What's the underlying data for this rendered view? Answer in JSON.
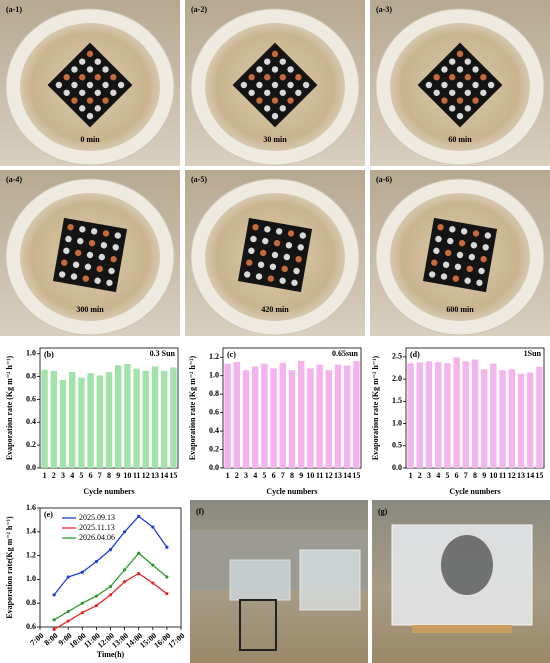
{
  "photos": [
    {
      "label": "(a-1)",
      "caption": "0 min"
    },
    {
      "label": "(a-2)",
      "caption": "30 min"
    },
    {
      "label": "(a-3)",
      "caption": "60 min"
    },
    {
      "label": "(a-4)",
      "caption": "300 min"
    },
    {
      "label": "(a-5)",
      "caption": "420 min"
    },
    {
      "label": "(a-6)",
      "caption": "600 min"
    }
  ],
  "field_photos": [
    {
      "label": "(f)"
    },
    {
      "label": "(g)"
    }
  ],
  "chart_data": [
    {
      "type": "bar",
      "label": "(b)",
      "annotation": "0.3 Sun",
      "xlabel": "Cycle numbers",
      "ylabel": "Evaporation rate (Kg m⁻² h⁻¹)",
      "categories": [
        "1",
        "2",
        "3",
        "4",
        "5",
        "6",
        "7",
        "8",
        "9",
        "10",
        "11",
        "12",
        "13",
        "14",
        "15"
      ],
      "values": [
        0.86,
        0.85,
        0.77,
        0.84,
        0.79,
        0.83,
        0.81,
        0.84,
        0.9,
        0.91,
        0.87,
        0.85,
        0.89,
        0.85,
        0.88
      ],
      "color": "#a3e3ab",
      "ylim": [
        0,
        1.05
      ],
      "yticks": [
        {
          "value": 0,
          "label": "0.0"
        },
        0.2,
        0.4,
        0.6,
        0.8,
        {
          "value": 1,
          "label": "1.0"
        }
      ]
    },
    {
      "type": "bar",
      "label": "(c)",
      "annotation": "0.65sun",
      "xlabel": "Cycle numbers",
      "ylabel": "Evaporation rate (Kg m⁻² h⁻¹)",
      "categories": [
        "1",
        "2",
        "3",
        "4",
        "5",
        "6",
        "7",
        "8",
        "9",
        "10",
        "11",
        "12",
        "13",
        "14",
        "15"
      ],
      "values": [
        1.13,
        1.15,
        1.06,
        1.1,
        1.13,
        1.08,
        1.14,
        1.06,
        1.16,
        1.08,
        1.12,
        1.06,
        1.12,
        1.11,
        1.16
      ],
      "color": "#f4b3ee",
      "ylim": [
        0,
        1.3
      ],
      "yticks": [
        {
          "value": 0,
          "label": "0.0"
        },
        0.2,
        0.4,
        0.6,
        0.8,
        {
          "value": 1,
          "label": "1.0"
        },
        1.2
      ]
    },
    {
      "type": "bar",
      "label": "(d)",
      "annotation": "1Sun",
      "xlabel": "Cycle numbers",
      "ylabel": "Evaporation rate (Kg m⁻² h⁻¹)",
      "categories": [
        "1",
        "2",
        "3",
        "4",
        "5",
        "6",
        "7",
        "8",
        "9",
        "10",
        "11",
        "12",
        "13",
        "14",
        "15"
      ],
      "values": [
        2.36,
        2.38,
        2.4,
        2.38,
        2.36,
        2.49,
        2.4,
        2.44,
        2.22,
        2.35,
        2.2,
        2.22,
        2.12,
        2.15,
        2.28
      ],
      "color": "#f2b6ec",
      "ylim": [
        0,
        2.7
      ],
      "yticks": [
        {
          "value": 0,
          "label": "0.0"
        },
        0.5,
        {
          "value": 1,
          "label": "1.0"
        },
        1.5,
        {
          "value": 2,
          "label": "2.0"
        },
        2.5
      ]
    },
    {
      "type": "line",
      "label": "(e)",
      "xlabel": "Time(h)",
      "ylabel": "Evaporation rate(Kg m⁻² h⁻¹)",
      "categories": [
        "7:00",
        "8:00",
        "9:00",
        "10:00",
        "11:00",
        "12:00",
        "13:00",
        "14:00",
        "15:00",
        "16:00",
        "17:00"
      ],
      "series": [
        {
          "name": "2025.09.13",
          "color": "#1f3fd6",
          "values": [
            null,
            0.87,
            1.02,
            1.06,
            1.15,
            1.25,
            1.4,
            1.53,
            1.44,
            1.27,
            null
          ]
        },
        {
          "name": "2025.11.13",
          "color": "#e52a2a",
          "values": [
            null,
            0.58,
            0.65,
            0.72,
            0.78,
            0.87,
            0.98,
            1.05,
            0.97,
            0.88,
            null
          ]
        },
        {
          "name": "2026.04.06",
          "color": "#2f9a2f",
          "values": [
            null,
            0.66,
            0.73,
            0.8,
            0.86,
            0.94,
            1.08,
            1.22,
            1.12,
            1.02,
            null
          ]
        }
      ],
      "ylim": [
        0.6,
        1.6
      ],
      "yticks": [
        0.6,
        0.8,
        {
          "value": 1,
          "label": "1.0"
        },
        1.2,
        1.4,
        1.6
      ]
    }
  ]
}
